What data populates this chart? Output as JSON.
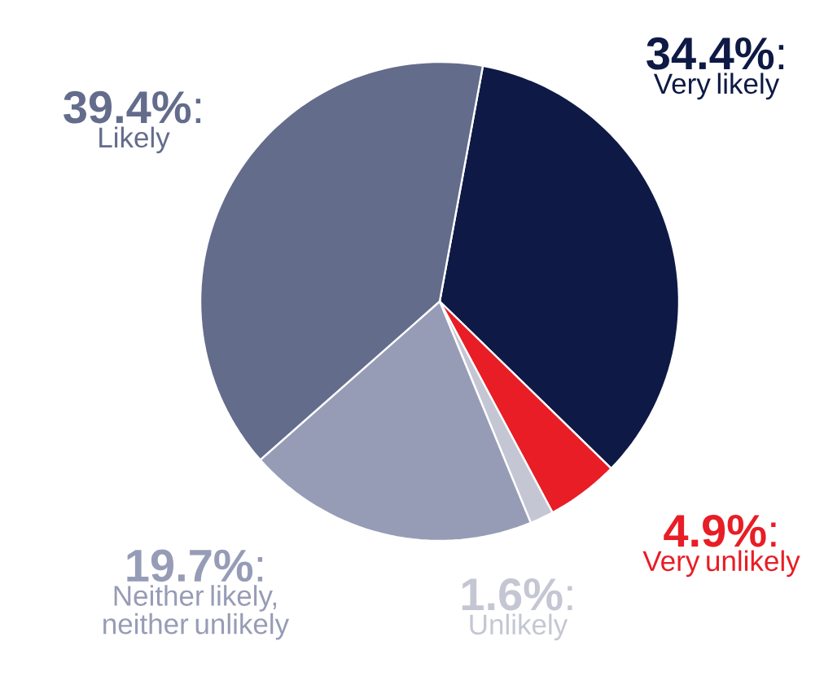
{
  "chart_data": {
    "type": "pie",
    "categories": [
      "Very likely",
      "Very unlikely",
      "Unlikely",
      "Neither likely, neither unlikely",
      "Likely"
    ],
    "values": [
      34.4,
      4.9,
      1.6,
      19.7,
      39.4
    ],
    "value_labels": [
      "**34.4%**:",
      "**4.9%**:",
      "**1.6%**:",
      "**19.7%**:",
      "**39.4%**:"
    ],
    "colors": [
      "#0e1a45",
      "#e81d25",
      "#c4c7d3",
      "#979cb6",
      "#646c8c"
    ]
  }
}
